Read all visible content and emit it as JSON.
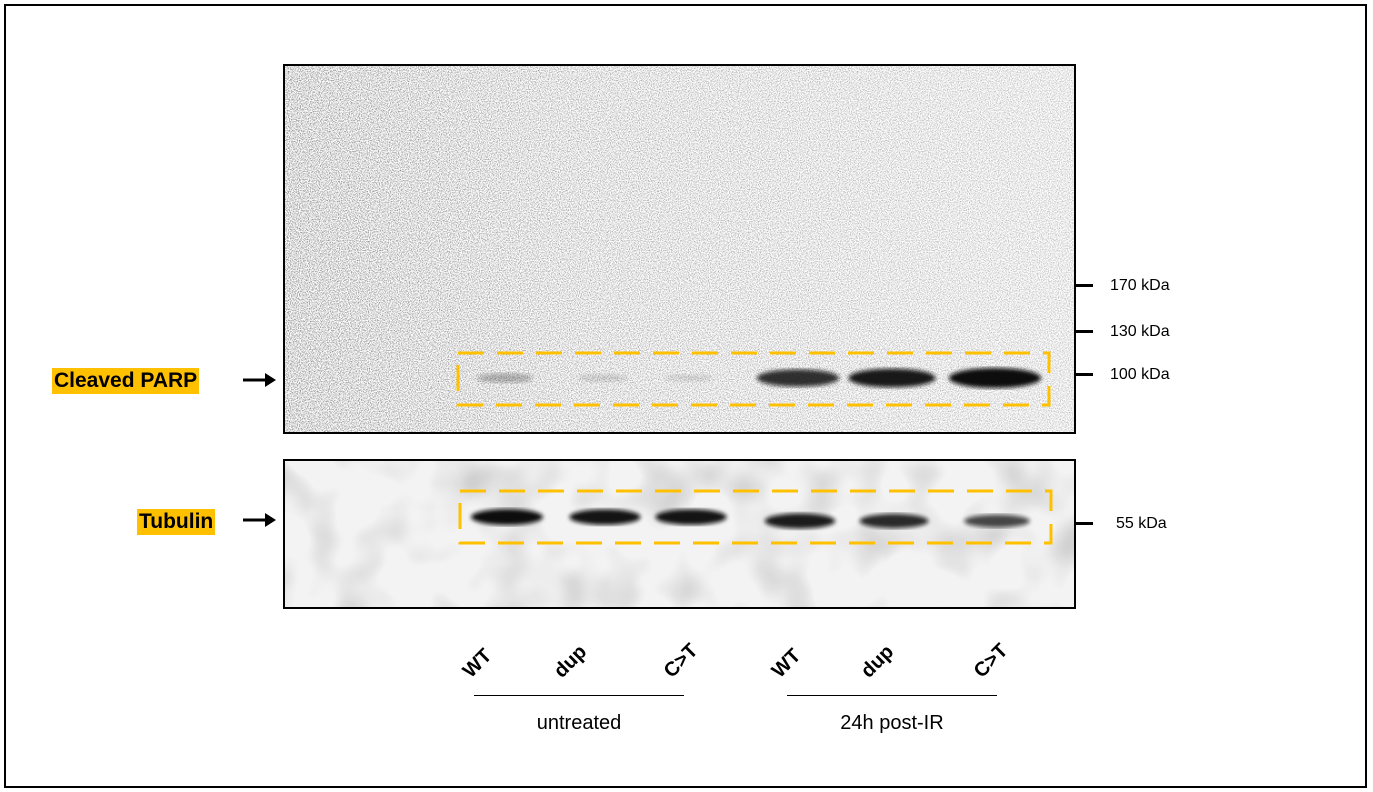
{
  "proteins": {
    "top": "Cleaved PARP",
    "bottom": "Tubulin"
  },
  "markers": {
    "m170": "170 kDa",
    "m130": "130 kDa",
    "m100": "100 kDa",
    "m55": "55 kDa"
  },
  "lanes": [
    "WT",
    "dup",
    "C>T",
    "WT",
    "dup",
    "C>T"
  ],
  "groups": {
    "left": "untreated",
    "right": "24h post-IR"
  },
  "colors": {
    "highlight": "#ffc000",
    "box_dash": "#ffc000",
    "band": "#0a0a0a"
  },
  "band_intensity": {
    "parp": [
      0.25,
      0.12,
      0.1,
      0.8,
      0.9,
      1.0
    ],
    "tubulin": [
      1.0,
      0.95,
      0.95,
      0.9,
      0.8,
      0.6
    ]
  }
}
